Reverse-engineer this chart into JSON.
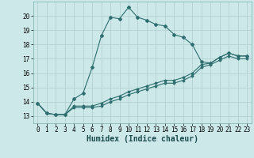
{
  "title": "",
  "xlabel": "Humidex (Indice chaleur)",
  "x_values": [
    0,
    1,
    2,
    3,
    4,
    5,
    6,
    7,
    8,
    9,
    10,
    11,
    12,
    13,
    14,
    15,
    16,
    17,
    18,
    19,
    20,
    21,
    22,
    23
  ],
  "line1": [
    13.9,
    13.2,
    13.1,
    13.1,
    14.2,
    14.6,
    16.4,
    18.6,
    19.9,
    19.8,
    20.6,
    19.9,
    19.7,
    19.4,
    19.3,
    18.7,
    18.5,
    18.0,
    16.8,
    16.7,
    17.1,
    17.4,
    17.2,
    17.2
  ],
  "line2": [
    13.9,
    13.2,
    13.1,
    13.1,
    13.7,
    13.7,
    13.7,
    13.9,
    14.2,
    14.4,
    14.7,
    14.9,
    15.1,
    15.3,
    15.5,
    15.5,
    15.7,
    16.0,
    16.6,
    16.7,
    17.1,
    17.4,
    17.2,
    17.2
  ],
  "line3": [
    13.9,
    13.2,
    13.1,
    13.1,
    13.6,
    13.6,
    13.6,
    13.7,
    14.0,
    14.2,
    14.5,
    14.7,
    14.9,
    15.1,
    15.3,
    15.3,
    15.5,
    15.8,
    16.4,
    16.6,
    16.9,
    17.2,
    17.0,
    17.0
  ],
  "line_color": "#2e6e6e",
  "background_color": "#cce8e8",
  "grid_color": "#b0cece",
  "ylim": [
    12.5,
    21.0
  ],
  "yticks": [
    13,
    14,
    15,
    16,
    17,
    18,
    19,
    20
  ],
  "xticks": [
    0,
    1,
    2,
    3,
    4,
    5,
    6,
    7,
    8,
    9,
    10,
    11,
    12,
    13,
    14,
    15,
    16,
    17,
    18,
    19,
    20,
    21,
    22,
    23
  ],
  "tick_fontsize": 5.5,
  "xlabel_fontsize": 7.0
}
